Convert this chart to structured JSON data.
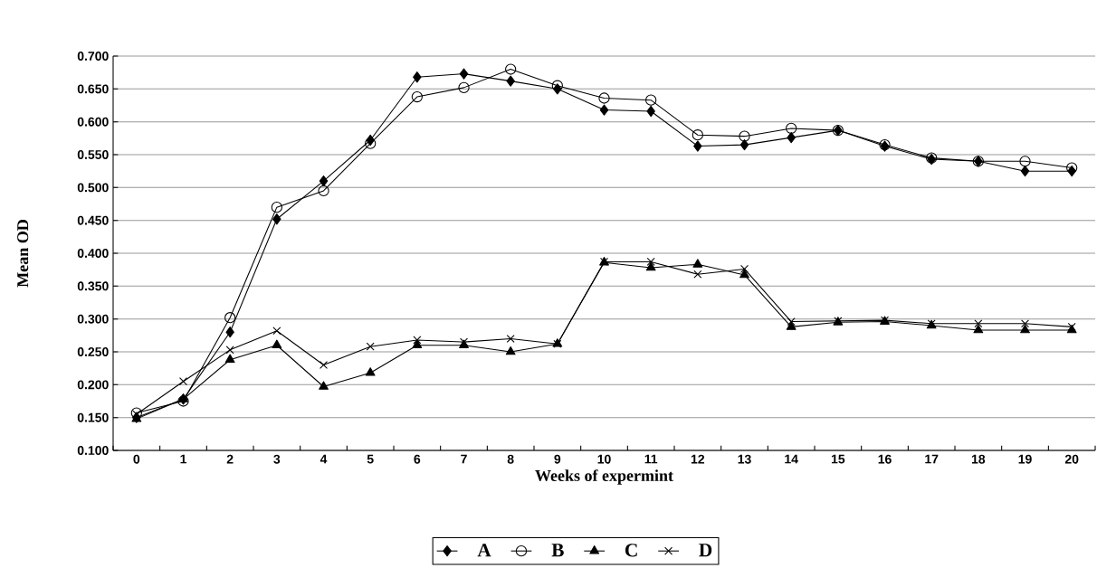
{
  "chart_data": {
    "type": "line",
    "xlabel": "Weeks of expermint",
    "ylabel": "Mean OD",
    "categories": [
      "0",
      "1",
      "2",
      "3",
      "4",
      "5",
      "6",
      "7",
      "8",
      "9",
      "10",
      "11",
      "12",
      "13",
      "14",
      "15",
      "16",
      "17",
      "18",
      "19",
      "20"
    ],
    "series": [
      {
        "name": "A",
        "color": "#000000",
        "marker": "diamond",
        "values": [
          0.15,
          0.178,
          0.28,
          0.452,
          0.51,
          0.572,
          0.668,
          0.673,
          0.662,
          0.65,
          0.618,
          0.616,
          0.563,
          0.565,
          0.576,
          0.587,
          0.563,
          0.543,
          0.54,
          0.525,
          0.525
        ]
      },
      {
        "name": "B",
        "color": "#000000",
        "marker": "circle",
        "values": [
          0.157,
          0.175,
          0.302,
          0.47,
          0.495,
          0.567,
          0.638,
          0.652,
          0.68,
          0.655,
          0.636,
          0.633,
          0.58,
          0.578,
          0.59,
          0.587,
          0.565,
          0.545,
          0.54,
          0.54,
          0.53
        ]
      },
      {
        "name": "C",
        "color": "#000000",
        "marker": "triangle",
        "values": [
          0.148,
          0.178,
          0.238,
          0.26,
          0.197,
          0.218,
          0.26,
          0.26,
          0.25,
          0.262,
          0.386,
          0.378,
          0.383,
          0.367,
          0.288,
          0.295,
          0.296,
          0.29,
          0.283,
          0.283,
          0.283
        ]
      },
      {
        "name": "D",
        "color": "#000000",
        "marker": "cross",
        "values": [
          0.155,
          0.205,
          0.253,
          0.282,
          0.23,
          0.258,
          0.268,
          0.265,
          0.27,
          0.262,
          0.387,
          0.387,
          0.368,
          0.376,
          0.296,
          0.297,
          0.298,
          0.293,
          0.293,
          0.293,
          0.288
        ]
      }
    ],
    "ylim": [
      0.1,
      0.7
    ],
    "yticks": [
      {
        "value": 0.1,
        "label": "0.100"
      },
      {
        "value": 0.15,
        "label": "0.150"
      },
      {
        "value": 0.2,
        "label": "0.200"
      },
      {
        "value": 0.25,
        "label": "0.250"
      },
      {
        "value": 0.3,
        "label": "0.300"
      },
      {
        "value": 0.35,
        "label": "0.350"
      },
      {
        "value": 0.4,
        "label": "0.400"
      },
      {
        "value": 0.45,
        "label": "0.450"
      },
      {
        "value": 0.5,
        "label": "0.500"
      },
      {
        "value": 0.55,
        "label": "0.550"
      },
      {
        "value": 0.6,
        "label": "0.600"
      },
      {
        "value": 0.65,
        "label": "0.650"
      },
      {
        "value": 0.7,
        "label": "0.700"
      }
    ],
    "grid": "y",
    "legend": "bottom",
    "line_style": "solid"
  }
}
